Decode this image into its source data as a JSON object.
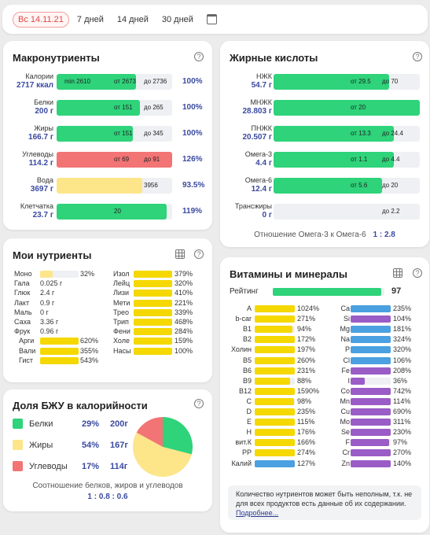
{
  "topbar": {
    "date": "Вс 14.11.21",
    "p7": "7 дней",
    "p14": "14 дней",
    "p30": "30 дней"
  },
  "macro": {
    "title": "Макронутриенты",
    "rows": [
      {
        "name": "Калории",
        "val": "2717 ккал",
        "fill": 0.69,
        "color": "#2ed37a",
        "t1": "min 2610",
        "t2": "от 2673",
        "t3": "до 2736",
        "pct": "100%"
      },
      {
        "name": "Белки",
        "val": "200 г",
        "fill": 0.72,
        "color": "#2ed37a",
        "t1": "",
        "t2": "от 151",
        "t3": "до 265",
        "pct": "100%"
      },
      {
        "name": "Жиры",
        "val": "166.7 г",
        "fill": 0.66,
        "color": "#2ed37a",
        "t1": "",
        "t2": "от 151",
        "t3": "до 345",
        "pct": "100%"
      },
      {
        "name": "Углеводы",
        "val": "114.2 г",
        "fill": 1.0,
        "color": "#f27474",
        "t1": "",
        "t2": "от 69",
        "t3": "до 91",
        "pct": "126%"
      },
      {
        "name": "Вода",
        "val": "3697 г",
        "fill": 0.74,
        "color": "#fde58a",
        "t1": "",
        "t2": "",
        "t3": "3956",
        "pct": "93.5%"
      },
      {
        "name": "Клетчатка",
        "val": "23.7 г",
        "fill": 0.95,
        "color": "#2ed37a",
        "t1": "",
        "t2": "20",
        "t3": "",
        "pct": "119%"
      }
    ]
  },
  "fats": {
    "title": "Жирные кислоты",
    "rows": [
      {
        "name": "НЖК",
        "val": "54.7 г",
        "fill": 0.79,
        "color": "#2ed37a",
        "t2": "от 29.5",
        "t3": "до 70"
      },
      {
        "name": "МНЖК",
        "val": "28.803 г",
        "fill": 1.0,
        "color": "#2ed37a",
        "t2": "от 20",
        "t3": ""
      },
      {
        "name": "ПНЖК",
        "val": "20.507 г",
        "fill": 0.82,
        "color": "#2ed37a",
        "t2": "от 13.3",
        "t3": "до 24.4"
      },
      {
        "name": "Омега-3",
        "val": "4.4 г",
        "fill": 0.82,
        "color": "#2ed37a",
        "t2": "от 1.1",
        "t3": "до 4.4"
      },
      {
        "name": "Омега-6",
        "val": "12.4 г",
        "fill": 0.74,
        "color": "#2ed37a",
        "t2": "от 5.6",
        "t3": "до 20"
      },
      {
        "name": "Трансжиры",
        "val": "0 г",
        "fill": 0,
        "color": "#2ed37a",
        "t2": "",
        "t3": "до 2.2"
      }
    ],
    "ratio_label": "Отношение Омега-3 к Омега-6",
    "ratio": "1 : 2.8"
  },
  "mine": {
    "title": "Мои нутриенты",
    "left": [
      {
        "n": "Моно",
        "v": "32%",
        "f": 0.32,
        "bar": true,
        "c": "#eef0f3",
        "fc": "#fde58a"
      },
      {
        "n": "Гала",
        "v": "0.025 г"
      },
      {
        "n": "Глюк",
        "v": "2.4 г"
      },
      {
        "n": "Лакт",
        "v": "0.9 г"
      },
      {
        "n": "Маль",
        "v": "0 г"
      },
      {
        "n": "Саха",
        "v": "3.36 г"
      },
      {
        "n": "Фрук",
        "v": "0.96 г"
      },
      {
        "n": "Арги",
        "v": "620%",
        "f": 1,
        "bar": true,
        "fc": "#f4d800"
      },
      {
        "n": "Вали",
        "v": "355%",
        "f": 1,
        "bar": true,
        "fc": "#f4d800"
      },
      {
        "n": "Гист",
        "v": "543%",
        "f": 1,
        "bar": true,
        "fc": "#f4d800"
      }
    ],
    "right": [
      {
        "n": "Изол",
        "v": "379%"
      },
      {
        "n": "Лейц",
        "v": "320%"
      },
      {
        "n": "Лизи",
        "v": "410%"
      },
      {
        "n": "Мети",
        "v": "221%"
      },
      {
        "n": "Трео",
        "v": "339%"
      },
      {
        "n": "Трип",
        "v": "468%"
      },
      {
        "n": "Фени",
        "v": "284%"
      },
      {
        "n": "Холе",
        "v": "159%"
      },
      {
        "n": "Насы",
        "v": "100%"
      }
    ]
  },
  "bju": {
    "title": "Доля БЖУ в калорийности",
    "rows": [
      {
        "name": "Белки",
        "pct": "29%",
        "g": "200г",
        "color": "#2ed37a"
      },
      {
        "name": "Жиры",
        "pct": "54%",
        "g": "167г",
        "color": "#fde58a"
      },
      {
        "name": "Углеводы",
        "pct": "17%",
        "g": "114г",
        "color": "#f27474"
      }
    ],
    "pie": [
      29,
      54,
      17
    ],
    "ratio_label": "Соотношение белков, жиров и углеводов",
    "ratio": "1 : 0.8 : 0.6"
  },
  "vit": {
    "title": "Витамины и минералы",
    "rating_label": "Рейтинг",
    "rating": "97",
    "left": [
      {
        "n": "A",
        "v": "1024%",
        "c": "#f4d800",
        "f": 1
      },
      {
        "n": "b-car",
        "v": "271%",
        "c": "#f4d800",
        "f": 1
      },
      {
        "n": "B1",
        "v": "94%",
        "c": "#f4d800",
        "f": 0.94
      },
      {
        "n": "B2",
        "v": "172%",
        "c": "#f4d800",
        "f": 1
      },
      {
        "n": "Холин",
        "v": "197%",
        "c": "#f4d800",
        "f": 1
      },
      {
        "n": "B5",
        "v": "260%",
        "c": "#f4d800",
        "f": 1
      },
      {
        "n": "B6",
        "v": "231%",
        "c": "#f4d800",
        "f": 1
      },
      {
        "n": "B9",
        "v": "88%",
        "c": "#f4d800",
        "f": 0.88
      },
      {
        "n": "B12",
        "v": "1590%",
        "c": "#f4d800",
        "f": 1
      },
      {
        "n": "C",
        "v": "98%",
        "c": "#f4d800",
        "f": 0.98
      },
      {
        "n": "D",
        "v": "235%",
        "c": "#f4d800",
        "f": 1
      },
      {
        "n": "E",
        "v": "115%",
        "c": "#f4d800",
        "f": 1
      },
      {
        "n": "H",
        "v": "176%",
        "c": "#f4d800",
        "f": 1
      },
      {
        "n": "вит.К",
        "v": "166%",
        "c": "#f4d800",
        "f": 1
      },
      {
        "n": "PP",
        "v": "274%",
        "c": "#f4d800",
        "f": 1
      },
      {
        "n": "Калий",
        "v": "127%",
        "c": "#4aa0e0",
        "f": 1
      }
    ],
    "right": [
      {
        "n": "Ca",
        "v": "235%",
        "c": "#4aa0e0",
        "f": 1
      },
      {
        "n": "Si",
        "v": "104%",
        "c": "#9a5cc6",
        "f": 1
      },
      {
        "n": "Mg",
        "v": "181%",
        "c": "#4aa0e0",
        "f": 1
      },
      {
        "n": "Na",
        "v": "324%",
        "c": "#4aa0e0",
        "f": 1
      },
      {
        "n": "P",
        "v": "320%",
        "c": "#4aa0e0",
        "f": 1
      },
      {
        "n": "Cl",
        "v": "106%",
        "c": "#4aa0e0",
        "f": 1
      },
      {
        "n": "Fe",
        "v": "208%",
        "c": "#9a5cc6",
        "f": 1
      },
      {
        "n": "I",
        "v": "36%",
        "c": "#9a5cc6",
        "f": 0.36
      },
      {
        "n": "Co",
        "v": "742%",
        "c": "#9a5cc6",
        "f": 1
      },
      {
        "n": "Mn",
        "v": "114%",
        "c": "#9a5cc6",
        "f": 1
      },
      {
        "n": "Cu",
        "v": "690%",
        "c": "#9a5cc6",
        "f": 1
      },
      {
        "n": "Mo",
        "v": "311%",
        "c": "#9a5cc6",
        "f": 1
      },
      {
        "n": "Se",
        "v": "230%",
        "c": "#9a5cc6",
        "f": 1
      },
      {
        "n": "F",
        "v": "97%",
        "c": "#9a5cc6",
        "f": 0.97
      },
      {
        "n": "Cr",
        "v": "270%",
        "c": "#9a5cc6",
        "f": 1
      },
      {
        "n": "Zn",
        "v": "140%",
        "c": "#9a5cc6",
        "f": 1
      }
    ],
    "note": "Количество нутриентов может быть неполным, т.к. не для всех продуктов есть данные об их содержании.",
    "note_link": "Подробнее..."
  }
}
